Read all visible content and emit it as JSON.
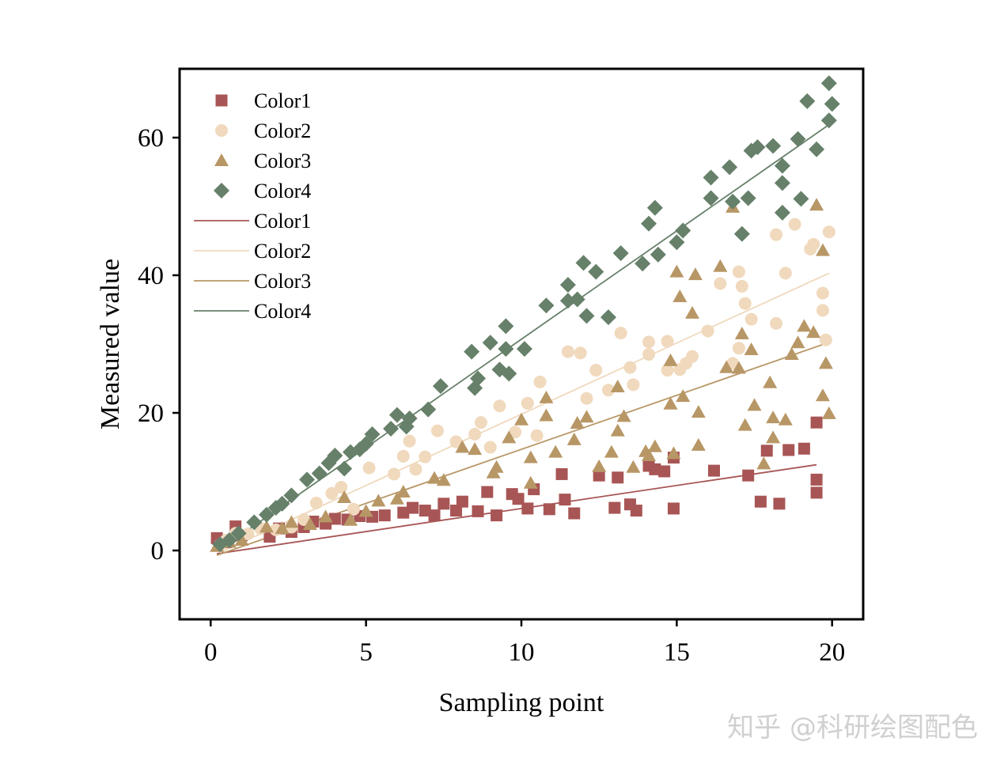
{
  "chart_data": {
    "type": "scatter",
    "xlabel": "Sampling point",
    "ylabel": "Measured value",
    "xlim": [
      -1,
      21
    ],
    "ylim": [
      -10,
      70
    ],
    "xticks": [
      0,
      5,
      10,
      15,
      20
    ],
    "yticks": [
      0,
      20,
      40,
      60
    ],
    "grid": false,
    "legend_position": "top-left",
    "watermark": "知乎 @科研绘图配色",
    "series": [
      {
        "name": "Color1",
        "marker": "square",
        "color": "#A85555",
        "fit": {
          "slope": 0.67,
          "intercept": -0.6
        },
        "points": [
          [
            0.2,
            1.8
          ],
          [
            0.5,
            1.2
          ],
          [
            0.8,
            3.5
          ],
          [
            1.0,
            2.2
          ],
          [
            1.9,
            2.0
          ],
          [
            2.2,
            3.2
          ],
          [
            2.6,
            2.7
          ],
          [
            3.0,
            3.4
          ],
          [
            3.3,
            4.2
          ],
          [
            3.7,
            3.9
          ],
          [
            4.0,
            4.6
          ],
          [
            4.4,
            4.5
          ],
          [
            4.8,
            5.0
          ],
          [
            5.2,
            4.9
          ],
          [
            5.6,
            5.1
          ],
          [
            6.2,
            5.5
          ],
          [
            6.5,
            6.2
          ],
          [
            6.9,
            5.8
          ],
          [
            7.2,
            5.1
          ],
          [
            7.5,
            6.8
          ],
          [
            7.9,
            5.8
          ],
          [
            8.1,
            7.1
          ],
          [
            8.6,
            5.7
          ],
          [
            8.9,
            8.5
          ],
          [
            9.2,
            5.1
          ],
          [
            9.7,
            8.2
          ],
          [
            9.9,
            7.5
          ],
          [
            10.2,
            6.1
          ],
          [
            10.4,
            8.9
          ],
          [
            10.9,
            6.0
          ],
          [
            11.3,
            11.1
          ],
          [
            11.4,
            7.4
          ],
          [
            11.7,
            5.4
          ],
          [
            12.5,
            10.9
          ],
          [
            13.0,
            6.2
          ],
          [
            13.1,
            10.6
          ],
          [
            13.5,
            6.7
          ],
          [
            13.7,
            5.8
          ],
          [
            14.1,
            12.3
          ],
          [
            14.3,
            11.8
          ],
          [
            14.6,
            11.5
          ],
          [
            14.9,
            13.5
          ],
          [
            14.9,
            6.1
          ],
          [
            16.2,
            11.6
          ],
          [
            17.3,
            10.9
          ],
          [
            17.7,
            7.1
          ],
          [
            17.9,
            14.5
          ],
          [
            18.3,
            6.8
          ],
          [
            18.6,
            14.6
          ],
          [
            19.1,
            14.8
          ],
          [
            19.5,
            18.6
          ],
          [
            19.5,
            10.3
          ],
          [
            19.5,
            8.4
          ]
        ]
      },
      {
        "name": "Color2",
        "marker": "circle",
        "color": "#F0D9BD",
        "fit": {
          "slope": 2.07,
          "intercept": -0.9
        },
        "points": [
          [
            0.3,
            0.8
          ],
          [
            0.5,
            1.5
          ],
          [
            0.8,
            2.5
          ],
          [
            1.2,
            2.4
          ],
          [
            1.6,
            3.2
          ],
          [
            2.1,
            3.0
          ],
          [
            2.6,
            3.4
          ],
          [
            3.0,
            4.5
          ],
          [
            3.4,
            6.9
          ],
          [
            3.9,
            8.3
          ],
          [
            4.2,
            9.2
          ],
          [
            4.6,
            6.0
          ],
          [
            5.1,
            12.0
          ],
          [
            5.9,
            11.1
          ],
          [
            6.2,
            13.7
          ],
          [
            6.4,
            15.9
          ],
          [
            6.6,
            11.8
          ],
          [
            6.9,
            13.6
          ],
          [
            7.3,
            17.4
          ],
          [
            7.9,
            15.8
          ],
          [
            8.5,
            16.9
          ],
          [
            8.7,
            18.6
          ],
          [
            9.0,
            15.0
          ],
          [
            9.3,
            21.0
          ],
          [
            9.8,
            17.2
          ],
          [
            10.2,
            21.4
          ],
          [
            10.5,
            16.7
          ],
          [
            10.6,
            24.5
          ],
          [
            11.5,
            28.9
          ],
          [
            11.9,
            28.7
          ],
          [
            12.1,
            22.1
          ],
          [
            12.4,
            26.2
          ],
          [
            12.8,
            23.3
          ],
          [
            13.2,
            31.6
          ],
          [
            13.5,
            26.6
          ],
          [
            13.6,
            24.1
          ],
          [
            14.1,
            30.3
          ],
          [
            14.1,
            28.5
          ],
          [
            14.7,
            26.2
          ],
          [
            14.7,
            30.4
          ],
          [
            15.1,
            26.3
          ],
          [
            15.3,
            27.2
          ],
          [
            15.5,
            28.2
          ],
          [
            16.0,
            31.9
          ],
          [
            16.4,
            38.8
          ],
          [
            16.8,
            27.2
          ],
          [
            17.0,
            29.4
          ],
          [
            17.0,
            40.5
          ],
          [
            17.1,
            38.4
          ],
          [
            17.2,
            35.9
          ],
          [
            17.4,
            33.6
          ],
          [
            18.2,
            33.0
          ],
          [
            18.2,
            45.9
          ],
          [
            18.5,
            40.3
          ],
          [
            18.8,
            47.4
          ],
          [
            19.3,
            43.8
          ],
          [
            19.4,
            44.5
          ],
          [
            19.7,
            37.4
          ],
          [
            19.7,
            34.9
          ],
          [
            19.8,
            30.6
          ],
          [
            19.9,
            46.3
          ]
        ]
      },
      {
        "name": "Color3",
        "marker": "triangle",
        "color": "#B89766",
        "fit": {
          "slope": 1.57,
          "intercept": -1.0
        },
        "points": [
          [
            0.2,
            0.6
          ],
          [
            0.6,
            1.2
          ],
          [
            1.0,
            1.5
          ],
          [
            1.8,
            3.4
          ],
          [
            2.3,
            3.2
          ],
          [
            2.6,
            4.1
          ],
          [
            3.2,
            3.8
          ],
          [
            3.7,
            4.9
          ],
          [
            4.3,
            7.7
          ],
          [
            4.5,
            4.4
          ],
          [
            5.0,
            5.7
          ],
          [
            5.4,
            7.2
          ],
          [
            6.0,
            7.5
          ],
          [
            6.2,
            8.5
          ],
          [
            7.2,
            10.5
          ],
          [
            7.5,
            10.2
          ],
          [
            8.1,
            15.0
          ],
          [
            8.5,
            14.7
          ],
          [
            9.1,
            11.3
          ],
          [
            9.2,
            12.1
          ],
          [
            9.6,
            16.4
          ],
          [
            10.0,
            19.0
          ],
          [
            10.3,
            9.8
          ],
          [
            10.3,
            13.5
          ],
          [
            10.8,
            19.6
          ],
          [
            10.8,
            22.2
          ],
          [
            11.1,
            14.3
          ],
          [
            11.7,
            16.1
          ],
          [
            11.8,
            18.5
          ],
          [
            12.1,
            19.4
          ],
          [
            12.5,
            12.2
          ],
          [
            12.9,
            14.3
          ],
          [
            13.1,
            23.8
          ],
          [
            13.1,
            17.4
          ],
          [
            13.3,
            19.5
          ],
          [
            13.6,
            12.1
          ],
          [
            14.0,
            14.4
          ],
          [
            14.1,
            13.8
          ],
          [
            14.3,
            15.1
          ],
          [
            14.8,
            27.6
          ],
          [
            14.8,
            21.3
          ],
          [
            14.9,
            14.1
          ],
          [
            15.0,
            40.5
          ],
          [
            15.1,
            36.9
          ],
          [
            15.2,
            22.4
          ],
          [
            15.5,
            34.5
          ],
          [
            15.6,
            40.1
          ],
          [
            15.7,
            20.1
          ],
          [
            15.7,
            15.3
          ],
          [
            16.4,
            41.3
          ],
          [
            16.6,
            26.6
          ],
          [
            16.8,
            49.9
          ],
          [
            17.0,
            26.5
          ],
          [
            17.1,
            31.5
          ],
          [
            17.2,
            18.2
          ],
          [
            17.4,
            29.2
          ],
          [
            17.5,
            21.1
          ],
          [
            17.8,
            12.6
          ],
          [
            18.0,
            24.4
          ],
          [
            18.1,
            19.3
          ],
          [
            18.1,
            16.4
          ],
          [
            18.5,
            19.0
          ],
          [
            18.7,
            28.5
          ],
          [
            18.9,
            30.2
          ],
          [
            19.1,
            32.6
          ],
          [
            19.4,
            31.7
          ],
          [
            19.5,
            50.2
          ],
          [
            19.7,
            43.6
          ],
          [
            19.7,
            22.5
          ],
          [
            19.8,
            27.2
          ],
          [
            19.9,
            19.9
          ]
        ]
      },
      {
        "name": "Color4",
        "marker": "diamond",
        "color": "#66806A",
        "fit": {
          "slope": 3.15,
          "intercept": -0.8
        },
        "points": [
          [
            0.3,
            0.9
          ],
          [
            0.6,
            1.5
          ],
          [
            0.9,
            2.5
          ],
          [
            1.4,
            4.1
          ],
          [
            1.8,
            5.2
          ],
          [
            2.1,
            6.2
          ],
          [
            2.3,
            6.8
          ],
          [
            2.6,
            8.0
          ],
          [
            3.1,
            10.3
          ],
          [
            3.5,
            11.2
          ],
          [
            3.8,
            12.7
          ],
          [
            4.0,
            13.8
          ],
          [
            4.3,
            11.9
          ],
          [
            4.5,
            14.3
          ],
          [
            4.8,
            14.7
          ],
          [
            5.0,
            15.5
          ],
          [
            5.2,
            16.9
          ],
          [
            5.8,
            17.7
          ],
          [
            6.0,
            19.7
          ],
          [
            6.3,
            18.0
          ],
          [
            6.4,
            19.2
          ],
          [
            7.0,
            20.5
          ],
          [
            7.4,
            23.9
          ],
          [
            8.4,
            28.9
          ],
          [
            8.5,
            23.6
          ],
          [
            8.6,
            25.0
          ],
          [
            9.0,
            30.2
          ],
          [
            9.3,
            26.3
          ],
          [
            9.5,
            29.3
          ],
          [
            9.5,
            32.6
          ],
          [
            9.6,
            25.7
          ],
          [
            10.1,
            29.3
          ],
          [
            10.8,
            35.6
          ],
          [
            11.5,
            38.6
          ],
          [
            11.5,
            36.3
          ],
          [
            11.8,
            36.5
          ],
          [
            12.0,
            41.8
          ],
          [
            12.1,
            34.1
          ],
          [
            12.4,
            40.5
          ],
          [
            12.8,
            33.9
          ],
          [
            13.2,
            43.2
          ],
          [
            13.9,
            41.7
          ],
          [
            14.1,
            47.5
          ],
          [
            14.3,
            49.8
          ],
          [
            14.4,
            43.0
          ],
          [
            15.0,
            44.8
          ],
          [
            15.2,
            46.5
          ],
          [
            16.1,
            54.2
          ],
          [
            16.1,
            51.2
          ],
          [
            16.7,
            55.7
          ],
          [
            16.8,
            50.7
          ],
          [
            17.1,
            46.0
          ],
          [
            17.3,
            51.2
          ],
          [
            17.4,
            58.1
          ],
          [
            17.6,
            58.6
          ],
          [
            18.1,
            58.8
          ],
          [
            18.4,
            55.9
          ],
          [
            18.4,
            53.4
          ],
          [
            18.4,
            49.1
          ],
          [
            18.9,
            59.8
          ],
          [
            19.0,
            51.1
          ],
          [
            19.2,
            65.3
          ],
          [
            19.5,
            58.3
          ],
          [
            19.9,
            62.5
          ],
          [
            19.9,
            67.9
          ],
          [
            20.0,
            64.9
          ]
        ]
      }
    ]
  }
}
